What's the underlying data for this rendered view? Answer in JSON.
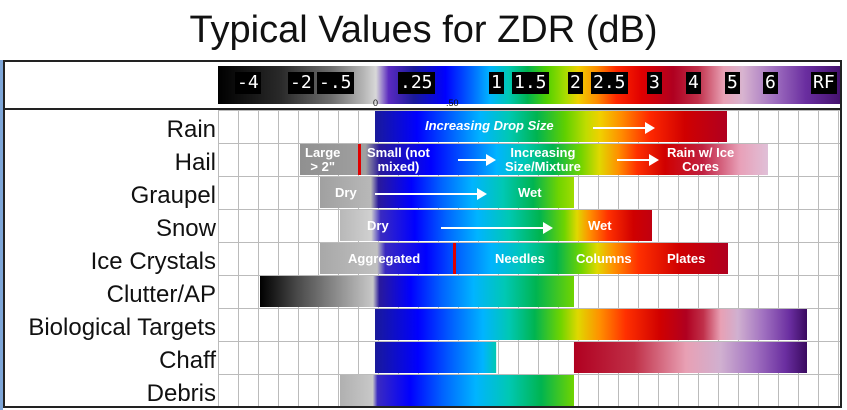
{
  "title": "Typical Values for ZDR (dB)",
  "scale": {
    "labels": [
      "-4",
      "-2",
      "-.5",
      ".25",
      "1",
      "1.5",
      "2",
      "2.5",
      "3",
      "4",
      "5",
      "6",
      "RF"
    ],
    "ticks": [
      "0",
      ".50"
    ]
  },
  "rows": [
    "Rain",
    "Hail",
    "Graupel",
    "Snow",
    "Ice Crystals",
    "Clutter/AP",
    "Biological Targets",
    "Chaff",
    "Debris"
  ],
  "annotations": {
    "rain": "Increasing Drop Size",
    "hail_large": "Large\n> 2\"",
    "hail_small": "Small (not\nmixed)",
    "hail_increasing": "Increasing\nSize/Mixture",
    "hail_rain": "Rain w/ Ice\nCores",
    "graupel_dry": "Dry",
    "graupel_wet": "Wet",
    "snow_dry": "Dry",
    "snow_wet": "Wet",
    "ice_aggregated": "Aggregated",
    "ice_needles": "Needles",
    "ice_columns": "Columns",
    "ice_plates": "Plates"
  },
  "chart_data": {
    "type": "table",
    "x_scale_db": [
      "-4",
      "-2",
      "-.5",
      "0",
      ".25",
      ".50",
      "1",
      "1.5",
      "2",
      "2.5",
      "3",
      "4",
      "5",
      "6",
      "RF"
    ],
    "rows": [
      {
        "target": "Rain",
        "annotation": "Increasing Drop Size"
      },
      {
        "target": "Hail",
        "annotations": [
          "Large > 2\"",
          "Small (not mixed)",
          "Increasing Size/Mixture",
          "Rain w/ Ice Cores"
        ]
      },
      {
        "target": "Graupel",
        "annotations": [
          "Dry",
          "Wet"
        ]
      },
      {
        "target": "Snow",
        "annotations": [
          "Dry",
          "Wet"
        ]
      },
      {
        "target": "Ice Crystals",
        "annotations": [
          "Aggregated",
          "Needles",
          "Columns",
          "Plates"
        ]
      },
      {
        "target": "Clutter/AP"
      },
      {
        "target": "Biological Targets"
      },
      {
        "target": "Chaff"
      },
      {
        "target": "Debris"
      }
    ]
  },
  "colors": {
    "marker": "#e00000",
    "grid": "#bbbbbb"
  }
}
